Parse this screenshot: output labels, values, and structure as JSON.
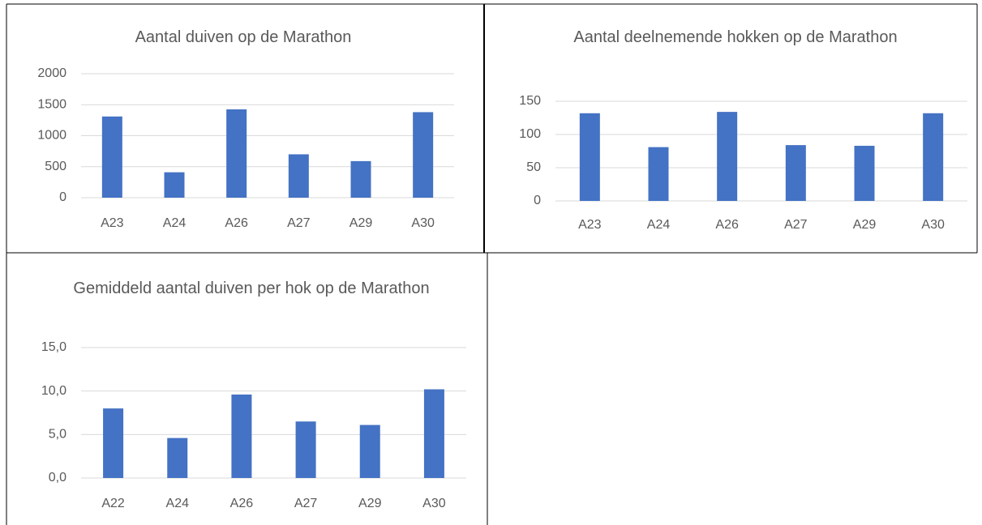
{
  "chart_data": [
    {
      "type": "bar",
      "title": "Aantal duiven op de Marathon",
      "categories": [
        "A23",
        "A24",
        "A26",
        "A27",
        "A29",
        "A30"
      ],
      "values": [
        1310,
        410,
        1425,
        700,
        590,
        1380
      ],
      "color": "#4472c4",
      "ylim": [
        0,
        2000
      ],
      "yticks": [
        0,
        500,
        1000,
        1500,
        2000
      ],
      "grid": true
    },
    {
      "type": "bar",
      "title": "Aantal deelnemende hokken op de Marathon",
      "categories": [
        "A23",
        "A24",
        "A26",
        "A27",
        "A29",
        "A30"
      ],
      "values": [
        132,
        81,
        134,
        84,
        83,
        132
      ],
      "color": "#4472c4",
      "ylim": [
        0,
        150
      ],
      "yticks": [
        0,
        50,
        100,
        150
      ],
      "grid": true
    },
    {
      "type": "bar",
      "title": "Gemiddeld aantal duiven per hok op de Marathon",
      "categories": [
        "A22",
        "A24",
        "A26",
        "A27",
        "A29",
        "A30"
      ],
      "values": [
        8.0,
        4.6,
        9.6,
        6.5,
        6.1,
        10.2
      ],
      "color": "#4472c4",
      "ylim": [
        0,
        15
      ],
      "yticks": [
        {
          "value": 0,
          "label": "0,0"
        },
        {
          "value": 5,
          "label": "5,0"
        },
        {
          "value": 10,
          "label": "10,0"
        },
        {
          "value": 15,
          "label": "15,0"
        }
      ],
      "grid": true
    }
  ]
}
